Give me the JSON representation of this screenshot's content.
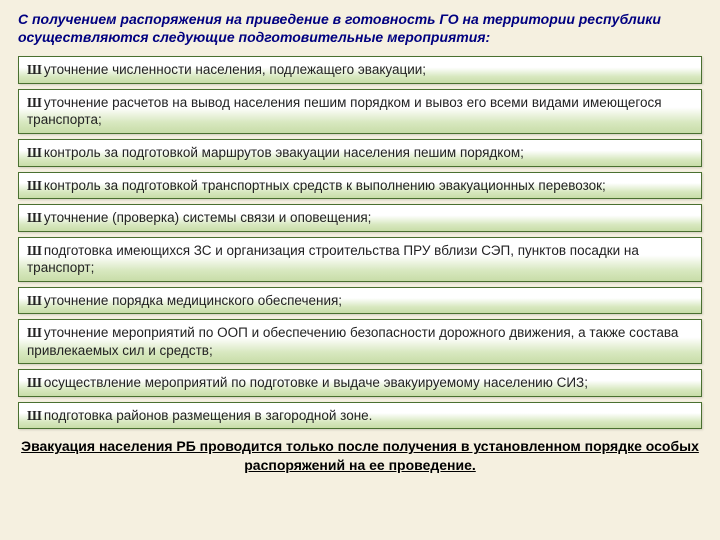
{
  "title": "С получением распоряжения на приведение в готовность ГО на территории республики осуществляются следующие подготовительные мероприятия:",
  "items": [
    "уточнение численности населения, подлежащего эвакуации;",
    "уточнение расчетов на вывод населения пешим порядком и вывоз его всеми видами имеющегося транспорта;",
    "контроль за подготовкой маршрутов эвакуации населения пешим порядком;",
    "контроль за подготовкой транспортных средств к выполнению эвакуационных перевозок;",
    "уточнение (проверка) системы связи и оповещения;",
    "подготовка имеющихся ЗС и организация строительства ПРУ вблизи СЭП, пунктов посадки на транспорт;",
    "уточнение порядка медицинского обеспечения;",
    "уточнение мероприятий по ООП и обеспечению безопасности дорожного движения, а также состава привлекаемых сил и средств;",
    "осуществление мероприятий по подготовке и выдаче эвакуируемому населению СИЗ;",
    "подготовка районов размещения в загородной зоне."
  ],
  "footer": "Эвакуация населения РБ проводится только после получения в установленном порядке особых распоряжений на ее проведение.",
  "bullet_glyph": "Ш",
  "colors": {
    "background": "#f5f0e0",
    "title_color": "#000080",
    "item_border": "#4a7030",
    "item_grad_top": "#ffffff",
    "item_grad_bottom": "#c8dda8"
  }
}
